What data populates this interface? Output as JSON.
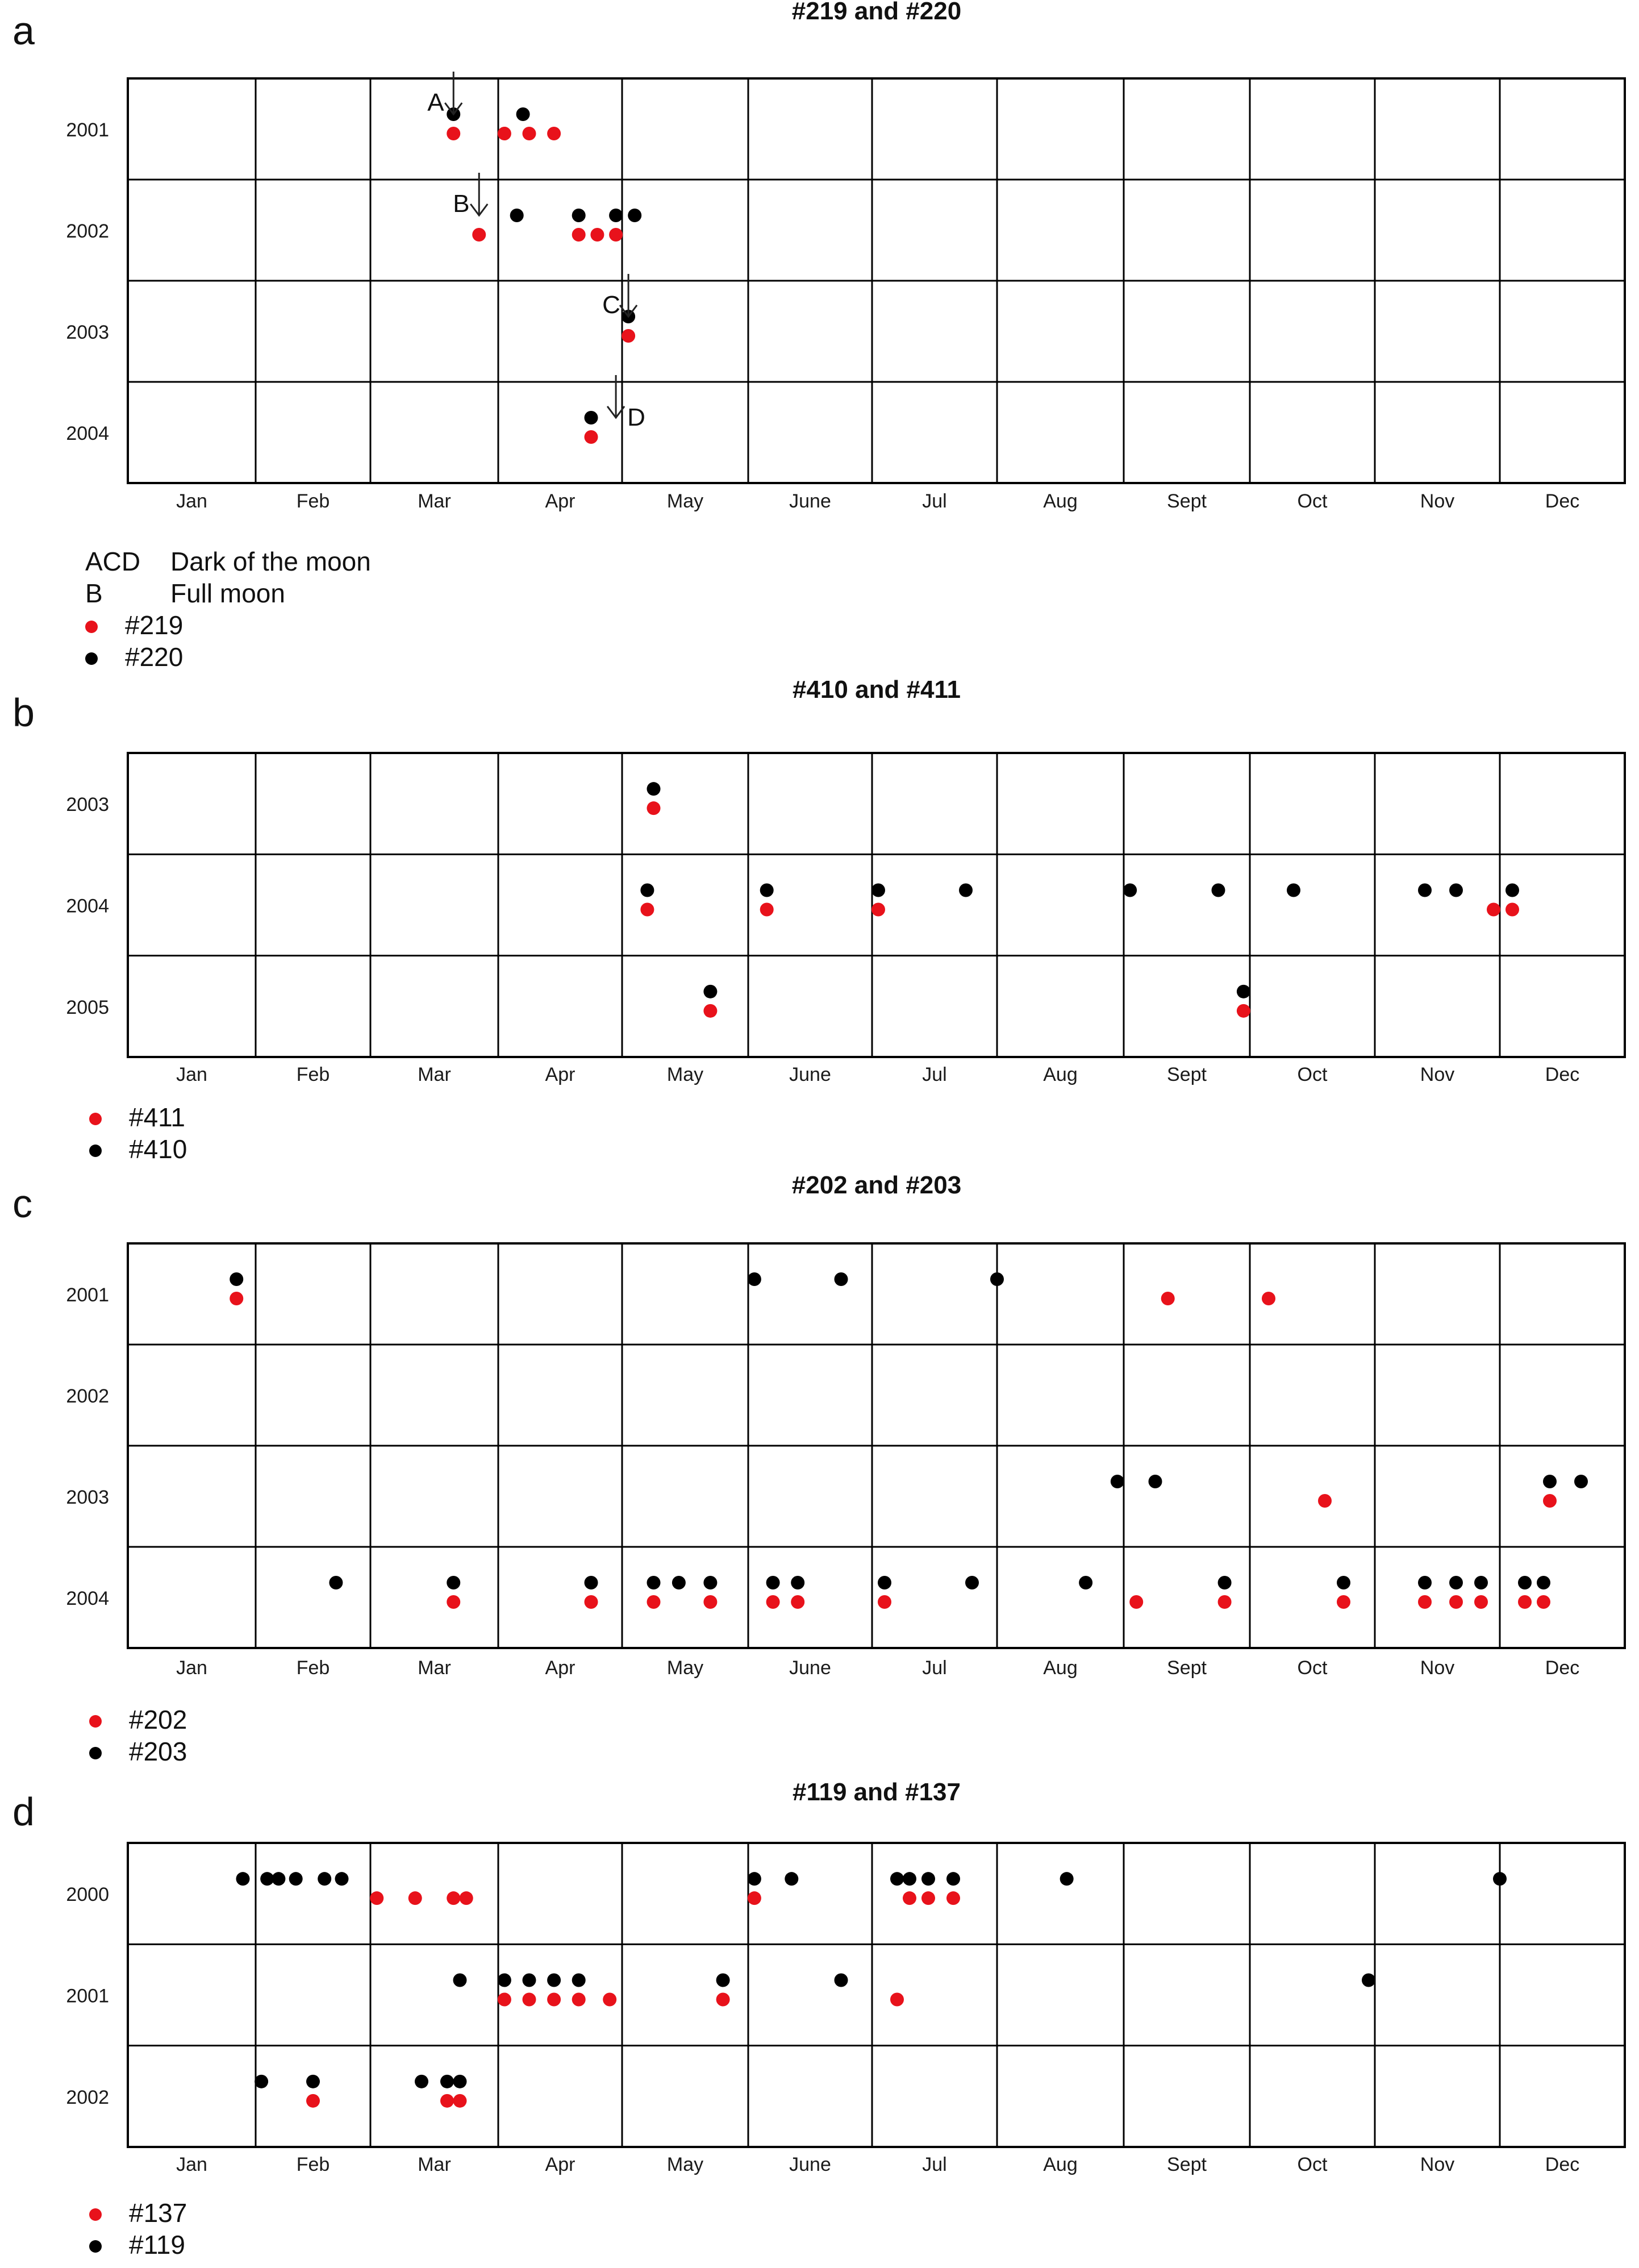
{
  "colors": {
    "red": "#e8121b",
    "black": "#000000",
    "grid": "#000000",
    "text": "#1a1a1a"
  },
  "chart_data": [
    {
      "type": "scatter",
      "panel_label": "a",
      "title": "#219 and #220",
      "xlabels": [
        "Jan",
        "Feb",
        "Mar",
        "Apr",
        "May",
        "June",
        "Jul",
        "Aug",
        "Sept",
        "Oct",
        "Nov",
        "Dec"
      ],
      "years": [
        "2001",
        "2002",
        "2003",
        "2004"
      ],
      "series": [
        {
          "name": "#219",
          "color": "red",
          "points": [
            {
              "year": "2001",
              "month": 3.65
            },
            {
              "year": "2001",
              "month": 4.05
            },
            {
              "year": "2001",
              "month": 4.25
            },
            {
              "year": "2001",
              "month": 4.45
            },
            {
              "year": "2002",
              "month": 3.85
            },
            {
              "year": "2002",
              "month": 4.65
            },
            {
              "year": "2002",
              "month": 4.8
            },
            {
              "year": "2002",
              "month": 4.95
            },
            {
              "year": "2003",
              "month": 5.05
            },
            {
              "year": "2004",
              "month": 4.75
            }
          ]
        },
        {
          "name": "#220",
          "color": "black",
          "points": [
            {
              "year": "2001",
              "month": 3.65
            },
            {
              "year": "2001",
              "month": 4.2
            },
            {
              "year": "2002",
              "month": 4.15
            },
            {
              "year": "2002",
              "month": 4.65
            },
            {
              "year": "2002",
              "month": 4.95
            },
            {
              "year": "2002",
              "month": 5.1
            },
            {
              "year": "2003",
              "month": 5.05
            },
            {
              "year": "2004",
              "month": 4.75
            }
          ]
        }
      ],
      "annotations": [
        {
          "text": "A",
          "year": "2001",
          "month": 3.65
        },
        {
          "text": "B",
          "year": "2002",
          "month": 3.85
        },
        {
          "text": "C",
          "year": "2003",
          "month": 5.05
        },
        {
          "text": "D",
          "year": "2004",
          "month": 4.95
        }
      ]
    },
    {
      "type": "scatter",
      "panel_label": "b",
      "title": "#410 and #411",
      "xlabels": [
        "Jan",
        "Feb",
        "Mar",
        "Apr",
        "May",
        "June",
        "Jul",
        "Aug",
        "Sept",
        "Oct",
        "Nov",
        "Dec"
      ],
      "years": [
        "2003",
        "2004",
        "2005"
      ],
      "series": [
        {
          "name": "#411",
          "color": "red",
          "points": [
            {
              "year": "2003",
              "month": 5.25
            },
            {
              "year": "2004",
              "month": 5.2
            },
            {
              "year": "2004",
              "month": 6.15
            },
            {
              "year": "2004",
              "month": 7.05
            },
            {
              "year": "2004",
              "month": 11.95
            },
            {
              "year": "2004",
              "month": 12.1
            },
            {
              "year": "2005",
              "month": 5.7
            },
            {
              "year": "2005",
              "month": 9.95
            }
          ]
        },
        {
          "name": "#410",
          "color": "black",
          "points": [
            {
              "year": "2003",
              "month": 5.25
            },
            {
              "year": "2004",
              "month": 5.2
            },
            {
              "year": "2004",
              "month": 6.15
            },
            {
              "year": "2004",
              "month": 7.05
            },
            {
              "year": "2004",
              "month": 7.75
            },
            {
              "year": "2004",
              "month": 9.05
            },
            {
              "year": "2004",
              "month": 9.75
            },
            {
              "year": "2004",
              "month": 10.35
            },
            {
              "year": "2004",
              "month": 11.4
            },
            {
              "year": "2004",
              "month": 11.65
            },
            {
              "year": "2004",
              "month": 12.1
            },
            {
              "year": "2005",
              "month": 5.7
            },
            {
              "year": "2005",
              "month": 9.95
            }
          ]
        }
      ]
    },
    {
      "type": "scatter",
      "panel_label": "c",
      "title": "#202 and #203",
      "xlabels": [
        "Jan",
        "Feb",
        "Mar",
        "Apr",
        "May",
        "June",
        "Jul",
        "Aug",
        "Sept",
        "Oct",
        "Nov",
        "Dec"
      ],
      "years": [
        "2001",
        "2002",
        "2003",
        "2004"
      ],
      "series": [
        {
          "name": "#202",
          "color": "red",
          "points": [
            {
              "year": "2001",
              "month": 1.85
            },
            {
              "year": "2001",
              "month": 9.35
            },
            {
              "year": "2001",
              "month": 10.15
            },
            {
              "year": "2003",
              "month": 10.6
            },
            {
              "year": "2003",
              "month": 12.4
            },
            {
              "year": "2004",
              "month": 3.65
            },
            {
              "year": "2004",
              "month": 4.75
            },
            {
              "year": "2004",
              "month": 5.25
            },
            {
              "year": "2004",
              "month": 5.7
            },
            {
              "year": "2004",
              "month": 6.2
            },
            {
              "year": "2004",
              "month": 6.4
            },
            {
              "year": "2004",
              "month": 7.1
            },
            {
              "year": "2004",
              "month": 9.1
            },
            {
              "year": "2004",
              "month": 9.8
            },
            {
              "year": "2004",
              "month": 10.75
            },
            {
              "year": "2004",
              "month": 11.4
            },
            {
              "year": "2004",
              "month": 11.65
            },
            {
              "year": "2004",
              "month": 11.85
            },
            {
              "year": "2004",
              "month": 12.2
            },
            {
              "year": "2004",
              "month": 12.35
            }
          ]
        },
        {
          "name": "#203",
          "color": "black",
          "points": [
            {
              "year": "2001",
              "month": 1.85
            },
            {
              "year": "2001",
              "month": 6.05
            },
            {
              "year": "2001",
              "month": 6.75
            },
            {
              "year": "2001",
              "month": 8.0
            },
            {
              "year": "2003",
              "month": 8.95
            },
            {
              "year": "2003",
              "month": 9.25
            },
            {
              "year": "2003",
              "month": 12.4
            },
            {
              "year": "2003",
              "month": 12.65
            },
            {
              "year": "2004",
              "month": 2.7
            },
            {
              "year": "2004",
              "month": 3.65
            },
            {
              "year": "2004",
              "month": 4.75
            },
            {
              "year": "2004",
              "month": 5.25
            },
            {
              "year": "2004",
              "month": 5.45
            },
            {
              "year": "2004",
              "month": 5.7
            },
            {
              "year": "2004",
              "month": 6.2
            },
            {
              "year": "2004",
              "month": 6.4
            },
            {
              "year": "2004",
              "month": 7.1
            },
            {
              "year": "2004",
              "month": 7.8
            },
            {
              "year": "2004",
              "month": 8.7
            },
            {
              "year": "2004",
              "month": 9.8
            },
            {
              "year": "2004",
              "month": 10.75
            },
            {
              "year": "2004",
              "month": 11.4
            },
            {
              "year": "2004",
              "month": 11.65
            },
            {
              "year": "2004",
              "month": 11.85
            },
            {
              "year": "2004",
              "month": 12.2
            },
            {
              "year": "2004",
              "month": 12.35
            }
          ]
        }
      ]
    },
    {
      "type": "scatter",
      "panel_label": "d",
      "title": "#119 and #137",
      "xlabels": [
        "Jan",
        "Feb",
        "Mar",
        "Apr",
        "May",
        "June",
        "Jul",
        "Aug",
        "Sept",
        "Oct",
        "Nov",
        "Dec"
      ],
      "years": [
        "2000",
        "2001",
        "2002"
      ],
      "series": [
        {
          "name": "#137",
          "color": "red",
          "points": [
            {
              "year": "2000",
              "month": 3.05
            },
            {
              "year": "2000",
              "month": 3.35
            },
            {
              "year": "2000",
              "month": 3.65
            },
            {
              "year": "2000",
              "month": 3.75
            },
            {
              "year": "2000",
              "month": 6.05
            },
            {
              "year": "2000",
              "month": 7.3
            },
            {
              "year": "2000",
              "month": 7.45
            },
            {
              "year": "2000",
              "month": 7.65
            },
            {
              "year": "2001",
              "month": 4.05
            },
            {
              "year": "2001",
              "month": 4.25
            },
            {
              "year": "2001",
              "month": 4.45
            },
            {
              "year": "2001",
              "month": 4.65
            },
            {
              "year": "2001",
              "month": 4.9
            },
            {
              "year": "2001",
              "month": 5.8
            },
            {
              "year": "2001",
              "month": 7.2
            },
            {
              "year": "2002",
              "month": 2.5
            },
            {
              "year": "2002",
              "month": 3.6
            },
            {
              "year": "2002",
              "month": 3.7
            }
          ]
        },
        {
          "name": "#119",
          "color": "black",
          "points": [
            {
              "year": "2000",
              "month": 1.9
            },
            {
              "year": "2000",
              "month": 2.1
            },
            {
              "year": "2000",
              "month": 2.2
            },
            {
              "year": "2000",
              "month": 2.35
            },
            {
              "year": "2000",
              "month": 2.6
            },
            {
              "year": "2000",
              "month": 2.75
            },
            {
              "year": "2000",
              "month": 6.05
            },
            {
              "year": "2000",
              "month": 6.35
            },
            {
              "year": "2000",
              "month": 7.2
            },
            {
              "year": "2000",
              "month": 7.3
            },
            {
              "year": "2000",
              "month": 7.45
            },
            {
              "year": "2000",
              "month": 7.65
            },
            {
              "year": "2000",
              "month": 8.55
            },
            {
              "year": "2000",
              "month": 12.0
            },
            {
              "year": "2001",
              "month": 3.7
            },
            {
              "year": "2001",
              "month": 4.05
            },
            {
              "year": "2001",
              "month": 4.25
            },
            {
              "year": "2001",
              "month": 4.45
            },
            {
              "year": "2001",
              "month": 4.65
            },
            {
              "year": "2001",
              "month": 5.8
            },
            {
              "year": "2001",
              "month": 6.75
            },
            {
              "year": "2001",
              "month": 10.95
            },
            {
              "year": "2002",
              "month": 2.05
            },
            {
              "year": "2002",
              "month": 2.5
            },
            {
              "year": "2002",
              "month": 3.4
            },
            {
              "year": "2002",
              "month": 3.6
            },
            {
              "year": "2002",
              "month": 3.7
            }
          ]
        }
      ]
    }
  ],
  "legends": [
    {
      "rows": [
        {
          "kind": "text",
          "label": "ACD",
          "desc": "Dark of the moon"
        },
        {
          "kind": "text",
          "label": "B",
          "desc": "Full moon"
        },
        {
          "kind": "dot",
          "color": "red",
          "text": "#219"
        },
        {
          "kind": "dot",
          "color": "black",
          "text": "#220"
        }
      ]
    },
    {
      "rows": [
        {
          "kind": "dot",
          "color": "red",
          "text": "#411"
        },
        {
          "kind": "dot",
          "color": "black",
          "text": "#410"
        }
      ]
    },
    {
      "rows": [
        {
          "kind": "dot",
          "color": "red",
          "text": "#202"
        },
        {
          "kind": "dot",
          "color": "black",
          "text": "#203"
        }
      ]
    },
    {
      "rows": [
        {
          "kind": "dot",
          "color": "red",
          "text": "#137"
        },
        {
          "kind": "dot",
          "color": "black",
          "text": "#119"
        }
      ]
    }
  ]
}
